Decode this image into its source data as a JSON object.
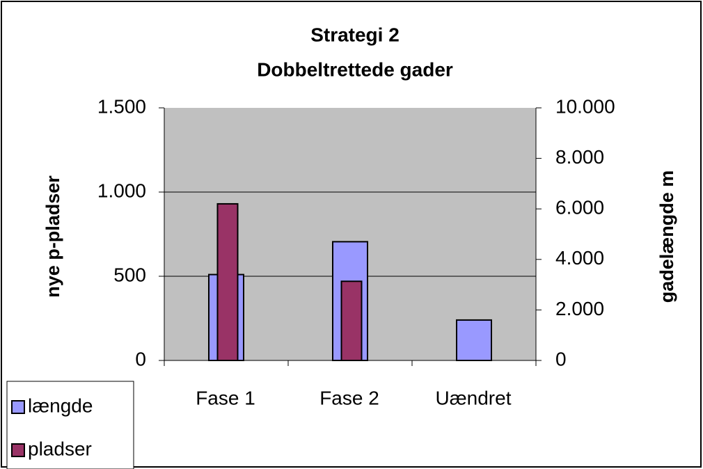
{
  "chart_data": {
    "type": "bar",
    "title": "Strategi 2",
    "subtitle": "Dobbeltrettede gader",
    "y_label": "nye p-pladser",
    "y2_label": "gadelængde m",
    "categories": [
      "Fase 1",
      "Fase 2",
      "Uændret"
    ],
    "series": [
      {
        "name": "længde",
        "color": "#9999ff",
        "axis": "y2",
        "values": [
          3400,
          4700,
          1600
        ]
      },
      {
        "name": "pladser",
        "color": "#993366",
        "values": [
          930,
          470,
          0
        ]
      }
    ],
    "ylim": [
      0,
      1500
    ],
    "yticks": [
      0,
      500,
      {
        "value": 1000,
        "label": "1.000"
      },
      {
        "value": 1500,
        "label": "1.500"
      }
    ],
    "y2lim": [
      0,
      10000
    ],
    "y2ticks": [
      0,
      {
        "value": 2000,
        "label": "2.000"
      },
      {
        "value": 4000,
        "label": "4.000"
      },
      {
        "value": 6000,
        "label": "6.000"
      },
      {
        "value": 8000,
        "label": "8.000"
      },
      {
        "value": 10000,
        "label": "10.000"
      }
    ],
    "grid": true,
    "plot_background": "#c0c0c0",
    "legend": "bottom-left"
  }
}
